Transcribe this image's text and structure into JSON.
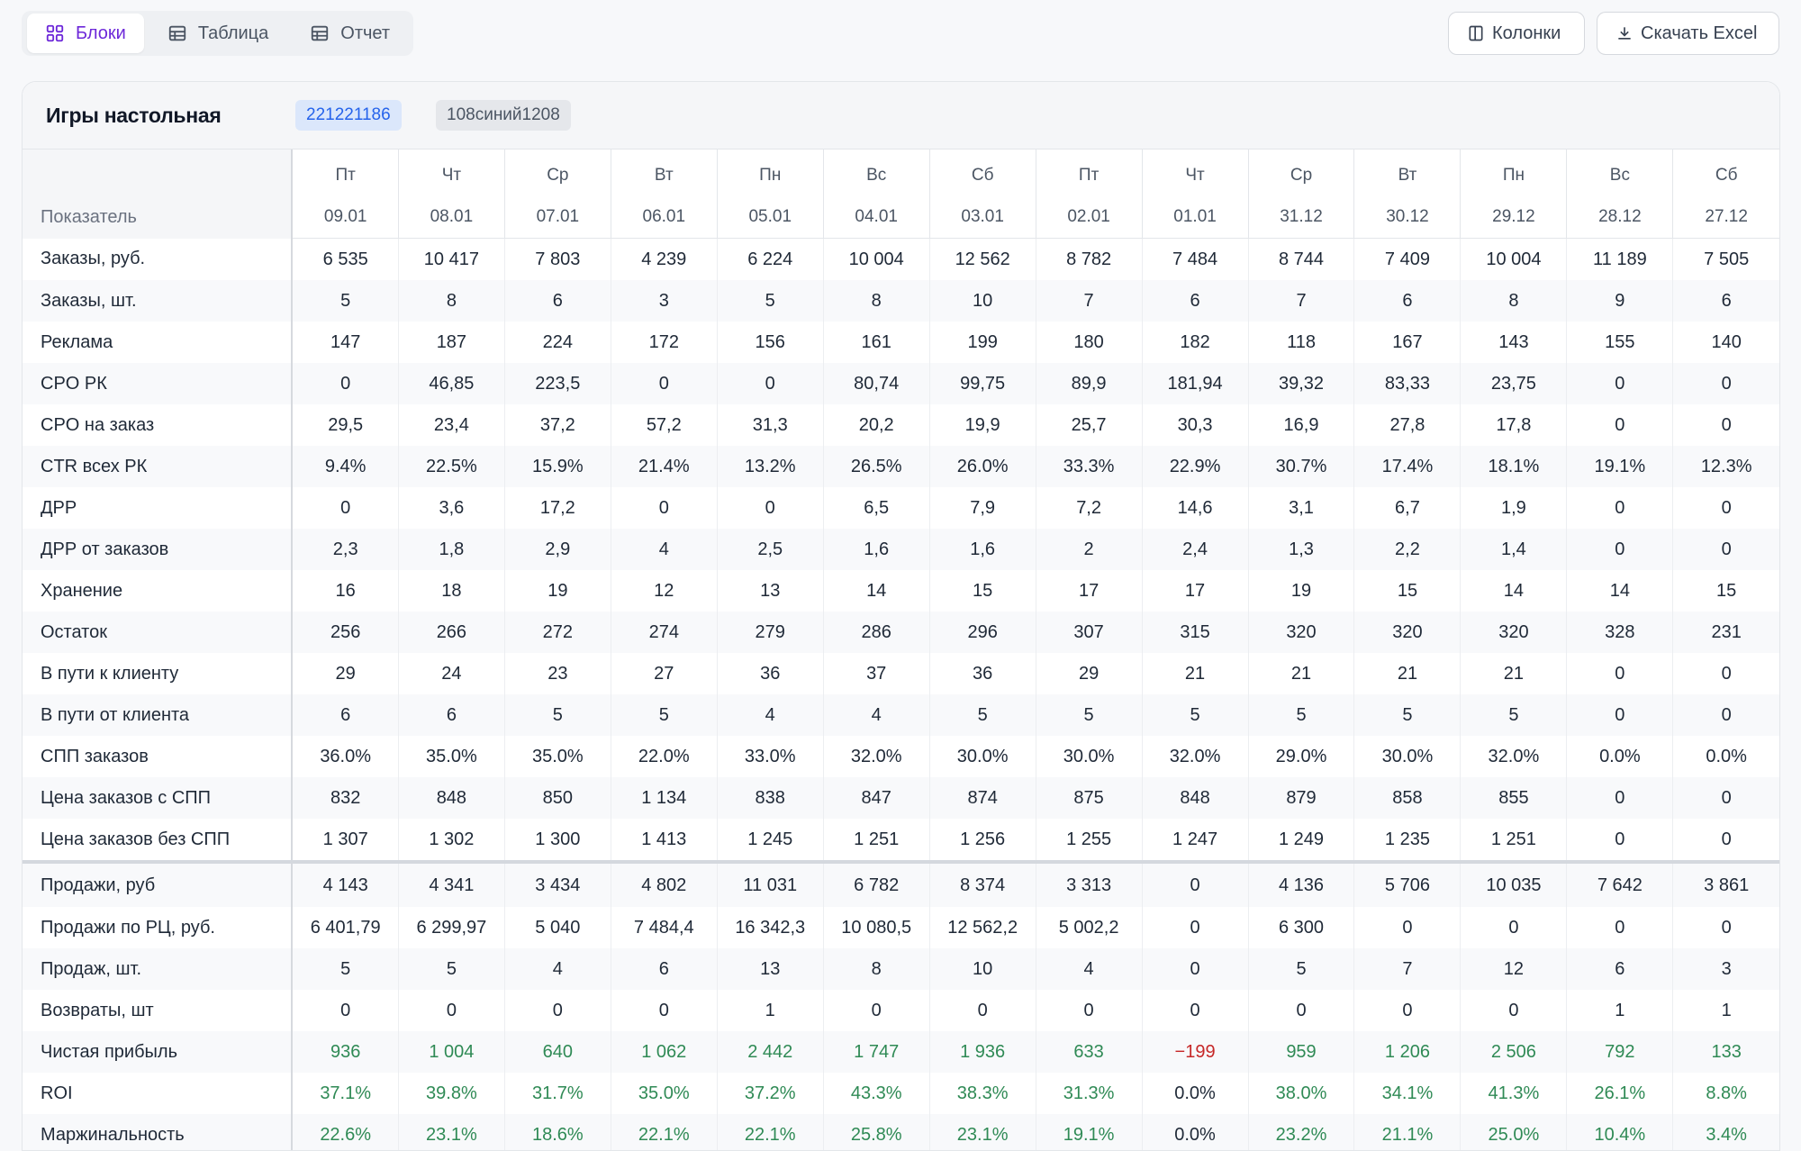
{
  "toolbar": {
    "tabs": [
      {
        "label": "Блоки",
        "icon": "grid-icon",
        "active": true
      },
      {
        "label": "Таблица",
        "icon": "table-icon",
        "active": false
      },
      {
        "label": "Отчет",
        "icon": "table-icon",
        "active": false
      }
    ],
    "columns_label": "Колонки",
    "download_label": "Скачать Excel"
  },
  "card": {
    "title": "Игры настольная",
    "chip_id": "221221186",
    "chip_sku": "108синий1208"
  },
  "table": {
    "label_header": "Показатель",
    "days": [
      "Пт",
      "Чт",
      "Ср",
      "Вт",
      "Пн",
      "Вс",
      "Сб",
      "Пт",
      "Чт",
      "Ср",
      "Вт",
      "Пн",
      "Вс",
      "Сб"
    ],
    "dates": [
      "09.01",
      "08.01",
      "07.01",
      "06.01",
      "05.01",
      "04.01",
      "03.01",
      "02.01",
      "01.01",
      "31.12",
      "30.12",
      "29.12",
      "28.12",
      "27.12"
    ],
    "rows": [
      {
        "label": "Заказы, руб.",
        "values": [
          "6 535",
          "10 417",
          "7 803",
          "4 239",
          "6 224",
          "10 004",
          "12 562",
          "8 782",
          "7 484",
          "8 744",
          "7 409",
          "10 004",
          "11 189",
          "7 505"
        ]
      },
      {
        "label": "Заказы, шт.",
        "values": [
          "5",
          "8",
          "6",
          "3",
          "5",
          "8",
          "10",
          "7",
          "6",
          "7",
          "6",
          "8",
          "9",
          "6"
        ]
      },
      {
        "label": "Реклама",
        "values": [
          "147",
          "187",
          "224",
          "172",
          "156",
          "161",
          "199",
          "180",
          "182",
          "118",
          "167",
          "143",
          "155",
          "140"
        ]
      },
      {
        "label": "CPO РК",
        "values": [
          "0",
          "46,85",
          "223,5",
          "0",
          "0",
          "80,74",
          "99,75",
          "89,9",
          "181,94",
          "39,32",
          "83,33",
          "23,75",
          "0",
          "0"
        ]
      },
      {
        "label": "CPO на заказ",
        "values": [
          "29,5",
          "23,4",
          "37,2",
          "57,2",
          "31,3",
          "20,2",
          "19,9",
          "25,7",
          "30,3",
          "16,9",
          "27,8",
          "17,8",
          "0",
          "0"
        ]
      },
      {
        "label": "CTR всех РК",
        "values": [
          "9.4%",
          "22.5%",
          "15.9%",
          "21.4%",
          "13.2%",
          "26.5%",
          "26.0%",
          "33.3%",
          "22.9%",
          "30.7%",
          "17.4%",
          "18.1%",
          "19.1%",
          "12.3%"
        ]
      },
      {
        "label": "ДРР",
        "values": [
          "0",
          "3,6",
          "17,2",
          "0",
          "0",
          "6,5",
          "7,9",
          "7,2",
          "14,6",
          "3,1",
          "6,7",
          "1,9",
          "0",
          "0"
        ]
      },
      {
        "label": "ДРР от заказов",
        "values": [
          "2,3",
          "1,8",
          "2,9",
          "4",
          "2,5",
          "1,6",
          "1,6",
          "2",
          "2,4",
          "1,3",
          "2,2",
          "1,4",
          "0",
          "0"
        ]
      },
      {
        "label": "Хранение",
        "values": [
          "16",
          "18",
          "19",
          "12",
          "13",
          "14",
          "15",
          "17",
          "17",
          "19",
          "15",
          "14",
          "14",
          "15"
        ]
      },
      {
        "label": "Остаток",
        "values": [
          "256",
          "266",
          "272",
          "274",
          "279",
          "286",
          "296",
          "307",
          "315",
          "320",
          "320",
          "320",
          "328",
          "231"
        ]
      },
      {
        "label": "В пути к клиенту",
        "values": [
          "29",
          "24",
          "23",
          "27",
          "36",
          "37",
          "36",
          "29",
          "21",
          "21",
          "21",
          "21",
          "0",
          "0"
        ]
      },
      {
        "label": "В пути от клиента",
        "values": [
          "6",
          "6",
          "5",
          "5",
          "4",
          "4",
          "5",
          "5",
          "5",
          "5",
          "5",
          "5",
          "0",
          "0"
        ]
      },
      {
        "label": "СПП заказов",
        "values": [
          "36.0%",
          "35.0%",
          "35.0%",
          "22.0%",
          "33.0%",
          "32.0%",
          "30.0%",
          "30.0%",
          "32.0%",
          "29.0%",
          "30.0%",
          "32.0%",
          "0.0%",
          "0.0%"
        ]
      },
      {
        "label": "Цена заказов с СПП",
        "values": [
          "832",
          "848",
          "850",
          "1 134",
          "838",
          "847",
          "874",
          "875",
          "848",
          "879",
          "858",
          "855",
          "0",
          "0"
        ]
      },
      {
        "label": "Цена заказов без СПП",
        "values": [
          "1 307",
          "1 302",
          "1 300",
          "1 413",
          "1 245",
          "1 251",
          "1 256",
          "1 255",
          "1 247",
          "1 249",
          "1 235",
          "1 251",
          "0",
          "0"
        ]
      },
      {
        "label": "Продажи, руб",
        "separator": true,
        "values": [
          "4 143",
          "4 341",
          "3 434",
          "4 802",
          "11 031",
          "6 782",
          "8 374",
          "3 313",
          "0",
          "4 136",
          "5 706",
          "10 035",
          "7 642",
          "3 861"
        ]
      },
      {
        "label": "Продажи по РЦ, руб.",
        "values": [
          "6 401,79",
          "6 299,97",
          "5 040",
          "7 484,4",
          "16 342,3",
          "10 080,5",
          "12 562,2",
          "5 002,2",
          "0",
          "6 300",
          "0",
          "0",
          "0",
          "0"
        ]
      },
      {
        "label": "Продаж, шт.",
        "values": [
          "5",
          "5",
          "4",
          "6",
          "13",
          "8",
          "10",
          "4",
          "0",
          "5",
          "7",
          "12",
          "6",
          "3"
        ]
      },
      {
        "label": "Возвраты, шт",
        "values": [
          "0",
          "0",
          "0",
          "0",
          "1",
          "0",
          "0",
          "0",
          "0",
          "0",
          "0",
          "0",
          "1",
          "1"
        ]
      },
      {
        "label": "Чистая прибыль",
        "colored": true,
        "values": [
          "936",
          "1 004",
          "640",
          "1 062",
          "2 442",
          "1 747",
          "1 936",
          "633",
          "−199",
          "959",
          "1 206",
          "2 506",
          "792",
          "133"
        ]
      },
      {
        "label": "ROI",
        "colored": true,
        "values": [
          "37.1%",
          "39.8%",
          "31.7%",
          "35.0%",
          "37.2%",
          "43.3%",
          "38.3%",
          "31.3%",
          "0.0%",
          "38.0%",
          "34.1%",
          "41.3%",
          "26.1%",
          "8.8%"
        ]
      },
      {
        "label": "Маржинальность",
        "colored": true,
        "values": [
          "22.6%",
          "23.1%",
          "18.6%",
          "22.1%",
          "22.1%",
          "25.8%",
          "23.1%",
          "19.1%",
          "0.0%",
          "23.2%",
          "21.1%",
          "25.0%",
          "10.4%",
          "3.4%"
        ]
      }
    ]
  },
  "colors": {
    "accent": "#6d28d9",
    "positive": "#2f8a55",
    "negative": "#c62828",
    "chip_blue_bg": "#dbe7fb",
    "chip_blue_text": "#2563eb"
  }
}
